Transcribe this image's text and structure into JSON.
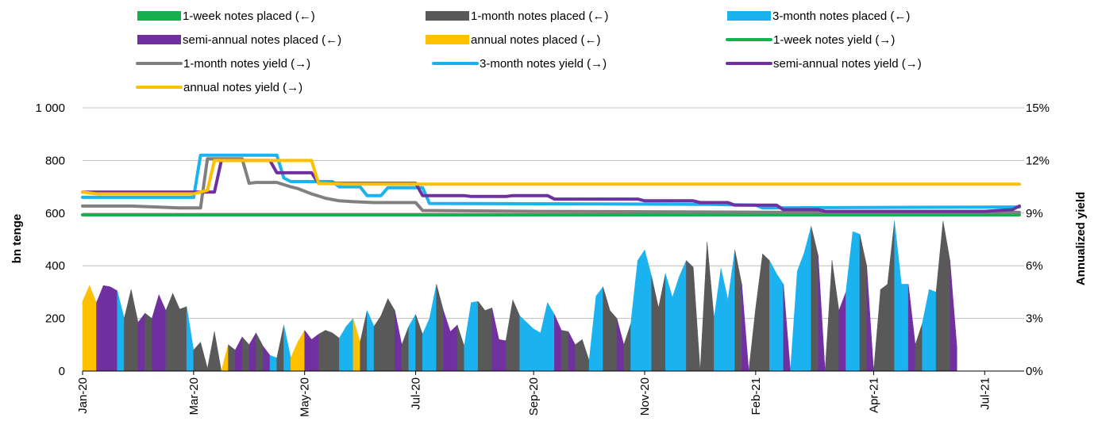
{
  "chart_data": {
    "type": "area+line",
    "xlabel": "",
    "ylabel_left": "bn tenge",
    "ylabel_right": "Annualized yield",
    "ylim_left": [
      0,
      1000
    ],
    "ylim_right": [
      0,
      15
    ],
    "yticks_left": [
      "0",
      "200",
      "400",
      "600",
      "800",
      "1 000"
    ],
    "yticks_right": [
      "0%",
      "3%",
      "6%",
      "9%",
      "12%",
      "15%"
    ],
    "x_tick_labels": [
      "Jan-20",
      "Mar-20",
      "May-20",
      "Jul-20",
      "Sep-20",
      "Nov-20",
      "Feb-21",
      "Apr-21",
      "Jul-21"
    ],
    "x_tick_index": [
      0,
      16,
      32,
      48,
      65,
      81,
      97,
      114,
      130
    ],
    "grid": "horizontal",
    "legend_placement": "top",
    "legend": [
      {
        "label": "1-week notes placed (←)",
        "kind": "patch",
        "color": "#17b04e"
      },
      {
        "label": "1-month notes placed (←)",
        "kind": "patch",
        "color": "#595959"
      },
      {
        "label": " 3-month notes placed (←)",
        "kind": "patch",
        "color": "#1ab2ef"
      },
      {
        "label": "semi-annual notes placed (←)",
        "kind": "patch",
        "color": "#7030a0"
      },
      {
        "label": "annual notes placed (←)",
        "kind": "patch",
        "color": "#ffc000"
      },
      {
        "label": "1-week notes yield (→)",
        "kind": "line",
        "color": "#17b04e"
      },
      {
        "label": "1-month notes yield (→)",
        "kind": "line",
        "color": "#808080"
      },
      {
        "label": "3-month notes yield (→)",
        "kind": "line",
        "color": "#1ab2ef"
      },
      {
        "label": "semi-annual notes yield (→)",
        "kind": "line",
        "color": "#7030a0"
      },
      {
        "label": "annual notes yield (→)",
        "kind": "line",
        "color": "#ffc000"
      }
    ],
    "placements": {
      "note": "weekly placements, bn tenge; each point: [value, maturity] where maturity 1m/3m/6m/12m",
      "points": [
        [
          265,
          "1m"
        ],
        [
          325,
          "12m"
        ],
        [
          260,
          "12m"
        ],
        [
          325,
          "6m"
        ],
        [
          320,
          "6m"
        ],
        [
          305,
          "6m"
        ],
        [
          200,
          "3m"
        ],
        [
          310,
          "1m"
        ],
        [
          185,
          "1m"
        ],
        [
          220,
          "6m"
        ],
        [
          200,
          "1m"
        ],
        [
          290,
          "6m"
        ],
        [
          230,
          "6m"
        ],
        [
          295,
          "1m"
        ],
        [
          235,
          "1m"
        ],
        [
          245,
          "1m"
        ],
        [
          80,
          "3m"
        ],
        [
          110,
          "1m"
        ],
        [
          10,
          "1m"
        ],
        [
          150,
          "1m"
        ],
        [
          0,
          "1m"
        ],
        [
          100,
          "12m"
        ],
        [
          80,
          "1m"
        ],
        [
          130,
          "6m"
        ],
        [
          100,
          "1m"
        ],
        [
          145,
          "6m"
        ],
        [
          95,
          "1m"
        ],
        [
          60,
          "6m"
        ],
        [
          50,
          "3m"
        ],
        [
          175,
          "1m"
        ],
        [
          50,
          "3m"
        ],
        [
          110,
          "12m"
        ],
        [
          155,
          "12m"
        ],
        [
          120,
          "6m"
        ],
        [
          140,
          "6m"
        ],
        [
          155,
          "1m"
        ],
        [
          145,
          "1m"
        ],
        [
          125,
          "1m"
        ],
        [
          170,
          "3m"
        ],
        [
          200,
          "3m"
        ],
        [
          110,
          "12m"
        ],
        [
          230,
          "1m"
        ],
        [
          170,
          "3m"
        ],
        [
          210,
          "1m"
        ],
        [
          275,
          "1m"
        ],
        [
          230,
          "1m"
        ],
        [
          100,
          "6m"
        ],
        [
          170,
          "1m"
        ],
        [
          215,
          "3m"
        ],
        [
          140,
          "1m"
        ],
        [
          200,
          "3m"
        ],
        [
          330,
          "3m"
        ],
        [
          230,
          "1m"
        ],
        [
          150,
          "6m"
        ],
        [
          175,
          "6m"
        ],
        [
          95,
          "1m"
        ],
        [
          260,
          "3m"
        ],
        [
          265,
          "3m"
        ],
        [
          230,
          "1m"
        ],
        [
          240,
          "1m"
        ],
        [
          120,
          "6m"
        ],
        [
          115,
          "6m"
        ],
        [
          270,
          "1m"
        ],
        [
          210,
          "1m"
        ],
        [
          185,
          "3m"
        ],
        [
          160,
          "3m"
        ],
        [
          145,
          "3m"
        ],
        [
          260,
          "3m"
        ],
        [
          215,
          "3m"
        ],
        [
          155,
          "6m"
        ],
        [
          150,
          "1m"
        ],
        [
          100,
          "6m"
        ],
        [
          120,
          "1m"
        ],
        [
          40,
          "1m"
        ],
        [
          285,
          "3m"
        ],
        [
          320,
          "3m"
        ],
        [
          230,
          "1m"
        ],
        [
          200,
          "1m"
        ],
        [
          100,
          "6m"
        ],
        [
          180,
          "1m"
        ],
        [
          420,
          "3m"
        ],
        [
          460,
          "3m"
        ],
        [
          360,
          "3m"
        ],
        [
          240,
          "1m"
        ],
        [
          370,
          "1m"
        ],
        [
          280,
          "3m"
        ],
        [
          360,
          "3m"
        ],
        [
          420,
          "3m"
        ],
        [
          395,
          "1m"
        ],
        [
          0,
          "1m"
        ],
        [
          490,
          "1m"
        ],
        [
          200,
          "1m"
        ],
        [
          390,
          "3m"
        ],
        [
          270,
          "3m"
        ],
        [
          460,
          "3m"
        ],
        [
          330,
          "1m"
        ],
        [
          0,
          "6m"
        ],
        [
          240,
          "1m"
        ],
        [
          445,
          "1m"
        ],
        [
          420,
          "1m"
        ],
        [
          370,
          "3m"
        ],
        [
          330,
          "3m"
        ],
        [
          0,
          "6m"
        ],
        [
          380,
          "3m"
        ],
        [
          450,
          "3m"
        ],
        [
          550,
          "3m"
        ],
        [
          440,
          "1m"
        ],
        [
          0,
          "6m"
        ],
        [
          420,
          "1m"
        ],
        [
          230,
          "1m"
        ],
        [
          300,
          "6m"
        ],
        [
          530,
          "3m"
        ],
        [
          520,
          "3m"
        ],
        [
          400,
          "1m"
        ],
        [
          0,
          "6m"
        ],
        [
          310,
          "1m"
        ],
        [
          330,
          "1m"
        ],
        [
          570,
          "1m"
        ],
        [
          330,
          "3m"
        ],
        [
          330,
          "3m"
        ],
        [
          100,
          "6m"
        ],
        [
          180,
          "1m"
        ],
        [
          310,
          "3m"
        ],
        [
          300,
          "3m"
        ],
        [
          570,
          "1m"
        ],
        [
          420,
          "1m"
        ],
        [
          90,
          "6m"
        ]
      ]
    },
    "yields": {
      "note": "annualized yield, %, per week index",
      "1w": [
        [
          0,
          8.9
        ],
        [
          135,
          8.9
        ]
      ],
      "1m": [
        [
          0,
          9.4
        ],
        [
          7,
          9.4
        ],
        [
          14,
          9.3
        ],
        [
          17,
          9.3
        ],
        [
          18,
          12.1
        ],
        [
          23,
          12.1
        ],
        [
          24,
          10.7
        ],
        [
          25,
          10.75
        ],
        [
          28,
          10.75
        ],
        [
          30,
          10.5
        ],
        [
          31,
          10.4
        ],
        [
          33,
          10.1
        ],
        [
          35,
          9.85
        ],
        [
          37,
          9.7
        ],
        [
          39,
          9.65
        ],
        [
          42,
          9.6
        ],
        [
          48,
          9.6
        ],
        [
          49,
          9.15
        ],
        [
          66,
          9.1
        ],
        [
          100,
          9.05
        ],
        [
          135,
          9.05
        ]
      ],
      "3m": [
        [
          0,
          9.9
        ],
        [
          16,
          9.9
        ],
        [
          17,
          12.3
        ],
        [
          28,
          12.3
        ],
        [
          29,
          11.0
        ],
        [
          30,
          10.8
        ],
        [
          36,
          10.8
        ],
        [
          37,
          10.5
        ],
        [
          40,
          10.5
        ],
        [
          41,
          10.0
        ],
        [
          43,
          10.0
        ],
        [
          44,
          10.45
        ],
        [
          49,
          10.45
        ],
        [
          50,
          9.55
        ],
        [
          90,
          9.5
        ],
        [
          97,
          9.45
        ],
        [
          98,
          9.3
        ],
        [
          134,
          9.35
        ],
        [
          135,
          9.35
        ]
      ],
      "6m": [
        [
          0,
          10.2
        ],
        [
          17,
          10.2
        ],
        [
          19,
          10.2
        ],
        [
          20,
          12.0
        ],
        [
          27,
          12.0
        ],
        [
          28,
          11.3
        ],
        [
          33,
          11.3
        ],
        [
          34,
          10.7
        ],
        [
          48,
          10.7
        ],
        [
          49,
          10.0
        ],
        [
          55,
          10.0
        ],
        [
          56,
          9.95
        ],
        [
          61,
          9.95
        ],
        [
          62,
          10.0
        ],
        [
          67,
          10.0
        ],
        [
          68,
          9.8
        ],
        [
          80,
          9.8
        ],
        [
          81,
          9.7
        ],
        [
          88,
          9.7
        ],
        [
          89,
          9.6
        ],
        [
          93,
          9.6
        ],
        [
          94,
          9.45
        ],
        [
          100,
          9.45
        ],
        [
          101,
          9.2
        ],
        [
          106,
          9.2
        ],
        [
          107,
          9.1
        ],
        [
          130,
          9.1
        ],
        [
          134,
          9.2
        ],
        [
          135,
          9.4
        ]
      ],
      "12m": [
        [
          0,
          10.2
        ],
        [
          2,
          10.1
        ],
        [
          16,
          10.1
        ],
        [
          18,
          10.3
        ],
        [
          19,
          12.0
        ],
        [
          33,
          12.0
        ],
        [
          34,
          10.7
        ],
        [
          38,
          10.65
        ],
        [
          135,
          10.65
        ]
      ]
    }
  }
}
